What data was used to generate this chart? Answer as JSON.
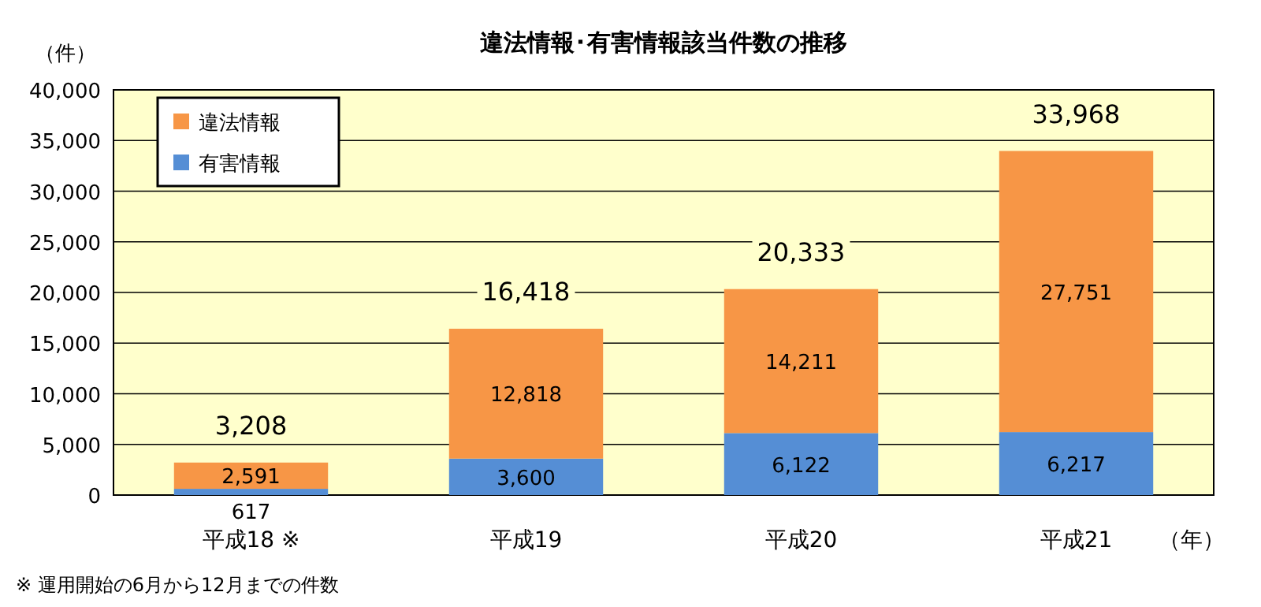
{
  "chart_data": {
    "type": "bar",
    "stacked": true,
    "title": "違法情報･有害情報該当件数の推移",
    "ylabel": "（件）",
    "xlabel": "（年）",
    "categories": [
      "平成18 ※",
      "平成19",
      "平成20",
      "平成21"
    ],
    "series": [
      {
        "name": "有害情報",
        "color": "#558ed5",
        "values": [
          617,
          3600,
          6122,
          6217
        ],
        "value_labels": [
          "617",
          "3,600",
          "6,122",
          "6,217"
        ]
      },
      {
        "name": "違法情報",
        "color": "#f79646",
        "values": [
          2591,
          12818,
          14211,
          27751
        ],
        "value_labels": [
          "2,591",
          "12,818",
          "14,211",
          "27,751"
        ]
      }
    ],
    "totals": [
      "3,208",
      "16,418",
      "20,333",
      "33,968"
    ],
    "ylim": [
      0,
      40000
    ],
    "yticks": [
      {
        "value": 0,
        "label": "0"
      },
      {
        "value": 5000,
        "label": "5,000"
      },
      {
        "value": 10000,
        "label": "10,000"
      },
      {
        "value": 15000,
        "label": "15,000"
      },
      {
        "value": 20000,
        "label": "20,000"
      },
      {
        "value": 25000,
        "label": "25,000"
      },
      {
        "value": 30000,
        "label": "30,000"
      },
      {
        "value": 35000,
        "label": "35,000"
      },
      {
        "value": 40000,
        "label": "40,000"
      }
    ],
    "grid": "y",
    "legend": "top left",
    "annotations": [
      "※ 運用開始の6月から12月までの件数"
    ]
  }
}
